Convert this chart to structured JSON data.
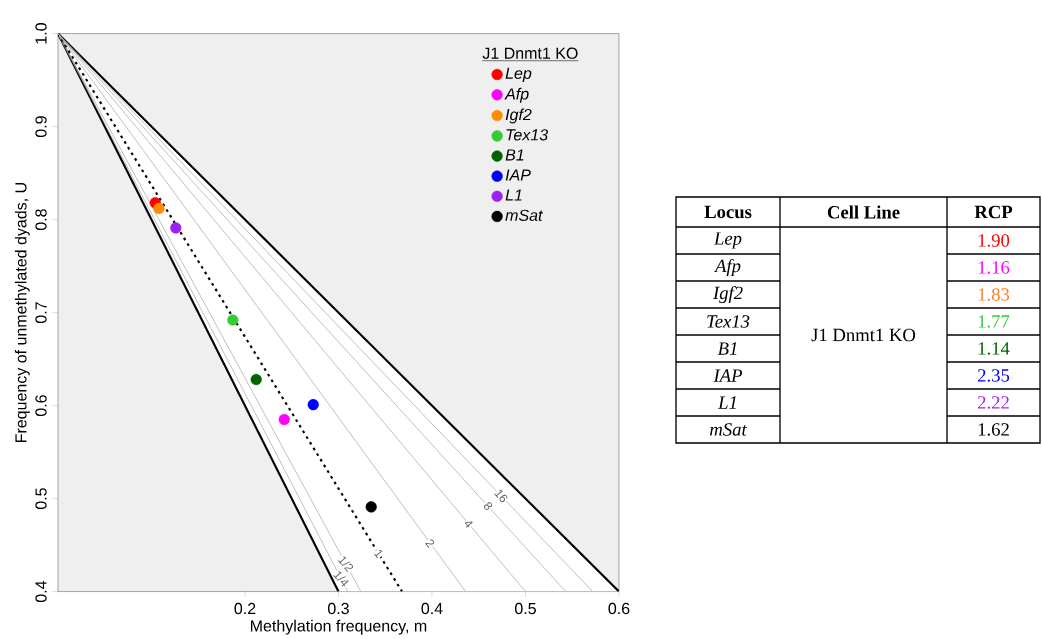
{
  "chart_data": [
    {
      "type": "scatter",
      "xlabel": "Methylation frequency, m",
      "ylabel": "Frequency of unmethylated dyads, U",
      "xlim": [
        0,
        0.6
      ],
      "ylim": [
        0.4,
        1.0
      ],
      "xticks": [
        0.2,
        0.3,
        0.4,
        0.5,
        0.6
      ],
      "yticks": [
        0.4,
        0.5,
        0.6,
        0.7,
        0.8,
        0.9,
        {
          "value": 1.0,
          "label": "1.0"
        }
      ],
      "legend": "top right",
      "legend_title": "J1 Dnmt1 KO",
      "series": [
        {
          "type": "line",
          "marker": "none",
          "color": "#000000",
          "x": [
            0,
            0.6
          ],
          "values": [
            1.0,
            0.4
          ]
        },
        {
          "type": "line",
          "marker": "none",
          "color": "#000000",
          "x": [
            0,
            0.3
          ],
          "values": [
            1.0,
            0.4
          ]
        },
        {
          "type": "line",
          "marker": "none",
          "color": "#b0b0b0",
          "x": [
            0,
            0.31
          ],
          "values": [
            1.0,
            0.4
          ]
        },
        {
          "type": "line",
          "marker": "none",
          "color": "#b0b0b0",
          "x": [
            0,
            0.324
          ],
          "values": [
            1.0,
            0.4
          ]
        },
        {
          "type": "line",
          "marker": "none",
          "color": "#000000",
          "line_style": "dotted",
          "x": [
            0,
            0.368
          ],
          "values": [
            1.0,
            0.4
          ]
        },
        {
          "type": "line",
          "marker": "none",
          "color": "#b0b0b0",
          "x": [
            0,
            0.436
          ],
          "values": [
            1.0,
            0.4
          ]
        },
        {
          "type": "line",
          "marker": "none",
          "color": "#b0b0b0",
          "x": [
            0,
            0.5
          ],
          "values": [
            1.0,
            0.4
          ]
        },
        {
          "type": "line",
          "marker": "none",
          "color": "#b0b0b0",
          "x": [
            0,
            0.543
          ],
          "values": [
            1.0,
            0.4
          ]
        },
        {
          "type": "line",
          "marker": "none",
          "color": "#b0b0b0",
          "x": [
            0,
            0.572
          ],
          "values": [
            1.0,
            0.4
          ]
        },
        {
          "name": "Lep",
          "marker": "circle",
          "color": "#ff0000",
          "x": [
            0.104
          ],
          "values": [
            0.818
          ]
        },
        {
          "name": "Afp",
          "marker": "circle",
          "color": "#ff00ff",
          "x": [
            0.242
          ],
          "values": [
            0.585
          ]
        },
        {
          "name": "Igf2",
          "marker": "circle",
          "color": "#ff8c00",
          "x": [
            0.108
          ],
          "values": [
            0.812
          ]
        },
        {
          "name": "Tex13",
          "marker": "circle",
          "color": "#33cc33",
          "x": [
            0.187
          ],
          "values": [
            0.692
          ]
        },
        {
          "name": "B1",
          "marker": "circle",
          "color": "#006400",
          "x": [
            0.212
          ],
          "values": [
            0.628
          ]
        },
        {
          "name": "IAP",
          "marker": "circle",
          "color": "#0000ff",
          "x": [
            0.273
          ],
          "values": [
            0.601
          ]
        },
        {
          "name": "L1",
          "marker": "circle",
          "color": "#a020f0",
          "x": [
            0.126
          ],
          "values": [
            0.791
          ]
        },
        {
          "name": "mSat",
          "marker": "circle",
          "color": "#000000",
          "x": [
            0.335
          ],
          "values": [
            0.491
          ]
        }
      ],
      "annotations": [
        {
          "text": "1/4",
          "x": 0.303,
          "y": 0.414
        },
        {
          "text": "1/2",
          "x": 0.308,
          "y": 0.43
        },
        {
          "text": "1",
          "x": 0.343,
          "y": 0.441
        },
        {
          "text": "2",
          "x": 0.398,
          "y": 0.452
        },
        {
          "text": "4",
          "x": 0.439,
          "y": 0.473
        },
        {
          "text": "8",
          "x": 0.46,
          "y": 0.492
        },
        {
          "text": "16",
          "x": 0.474,
          "y": 0.503
        }
      ]
    },
    {
      "type": "other",
      "categories": [
        "Lep",
        "Afp",
        "Igf2",
        "Tex13",
        "B1",
        "IAP",
        "L1",
        "mSat"
      ],
      "value_labels": [
        "1.90",
        "1.16",
        "1.83",
        "1.77",
        "1.14",
        "2.35",
        "2.22",
        "1.62"
      ],
      "colors": [
        "#ff0000",
        "#ff00ff",
        "#ff7f24",
        "#33cc33",
        "#006400",
        "#0000ff",
        "#a020f0",
        "#000000"
      ],
      "annotations": [
        "Locus",
        "Cell Line",
        "RCP",
        "J1 Dnmt1 KO"
      ]
    }
  ]
}
